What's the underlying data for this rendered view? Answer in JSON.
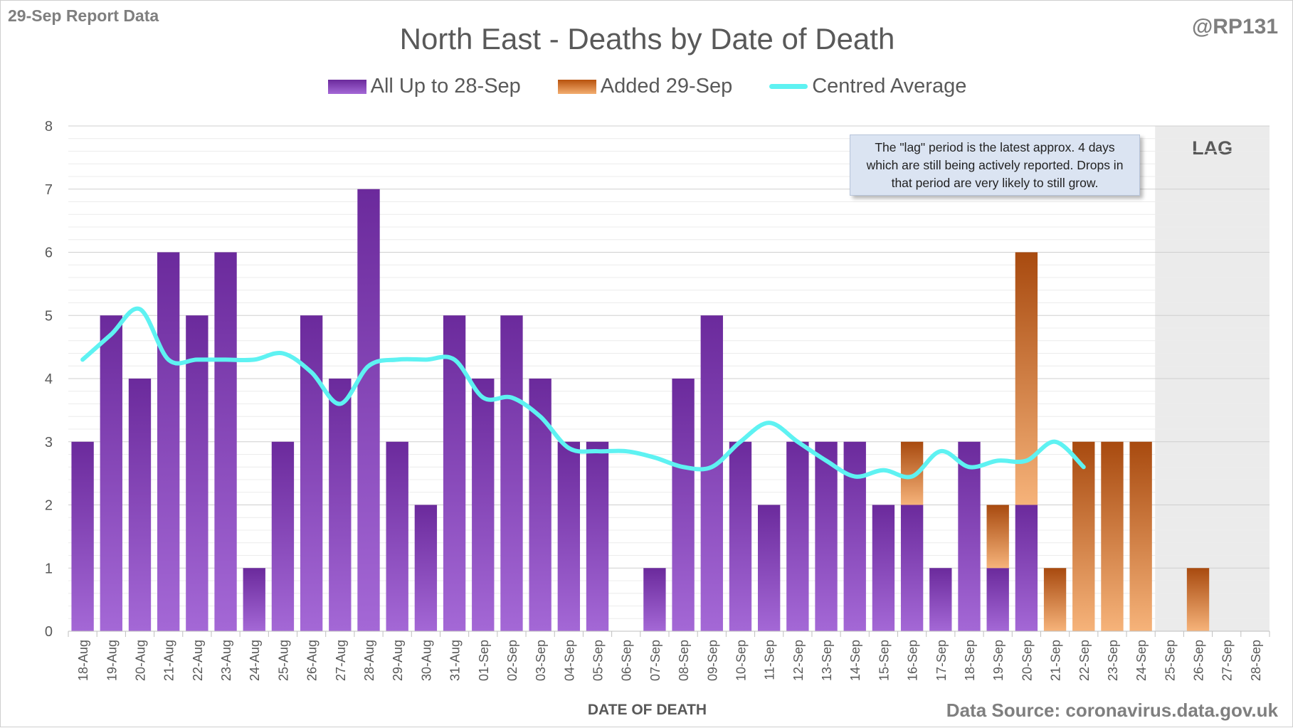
{
  "header": {
    "report_label": "29-Sep Report Data",
    "author_handle": "@RP131",
    "source_label": "Data Source: coronavirus.data.gov.uk"
  },
  "annotation": {
    "lag_note": "The \"lag\" period is the latest approx. 4 days which are still being actively reported.  Drops in that period are very likely to still grow.",
    "lag_label": "LAG",
    "lag_start": "25-Sep",
    "lag_end": "28-Sep"
  },
  "colors": {
    "purple_top": "#6b2a9c",
    "purple_bottom": "#a468d6",
    "orange_top": "#a84a0f",
    "orange_bottom": "#f6b37a",
    "average_line": "#5ef2f2",
    "lag_shade": "#ebebeb",
    "grid": "#d9d9d9"
  },
  "chart_data": {
    "type": "bar",
    "stacked": true,
    "title": "North East - Deaths by Date of Death",
    "xlabel": "DATE OF DEATH",
    "ylabel": "",
    "ylim": [
      0,
      8
    ],
    "yticks": [
      0,
      1,
      2,
      3,
      4,
      5,
      6,
      7,
      8
    ],
    "legend_position": "top-center",
    "categories": [
      "18-Aug",
      "19-Aug",
      "20-Aug",
      "21-Aug",
      "22-Aug",
      "23-Aug",
      "24-Aug",
      "25-Aug",
      "26-Aug",
      "27-Aug",
      "28-Aug",
      "29-Aug",
      "30-Aug",
      "31-Aug",
      "01-Sep",
      "02-Sep",
      "03-Sep",
      "04-Sep",
      "05-Sep",
      "06-Sep",
      "07-Sep",
      "08-Sep",
      "09-Sep",
      "10-Sep",
      "11-Sep",
      "12-Sep",
      "13-Sep",
      "14-Sep",
      "15-Sep",
      "16-Sep",
      "17-Sep",
      "18-Sep",
      "19-Sep",
      "20-Sep",
      "21-Sep",
      "22-Sep",
      "23-Sep",
      "24-Sep",
      "25-Sep",
      "26-Sep",
      "27-Sep",
      "28-Sep"
    ],
    "series": [
      {
        "name": "All Up to 28-Sep",
        "kind": "bar",
        "values": [
          3,
          5,
          4,
          6,
          5,
          6,
          1,
          3,
          5,
          4,
          7,
          3,
          2,
          5,
          4,
          5,
          4,
          3,
          3,
          0,
          1,
          4,
          5,
          3,
          2,
          3,
          3,
          3,
          2,
          2,
          1,
          3,
          1,
          2,
          0,
          0,
          0,
          0,
          0,
          0,
          0,
          0
        ]
      },
      {
        "name": "Added 29-Sep",
        "kind": "bar",
        "values": [
          0,
          0,
          0,
          0,
          0,
          0,
          0,
          0,
          0,
          0,
          0,
          0,
          0,
          0,
          0,
          0,
          0,
          0,
          0,
          0,
          0,
          0,
          0,
          0,
          0,
          0,
          0,
          0,
          0,
          1,
          0,
          0,
          1,
          4,
          1,
          3,
          3,
          3,
          0,
          1,
          0,
          0
        ]
      },
      {
        "name": "Centred Average",
        "kind": "line",
        "values": [
          4.3,
          4.7,
          5.1,
          4.3,
          4.3,
          4.3,
          4.3,
          4.4,
          4.1,
          3.6,
          4.2,
          4.3,
          4.3,
          4.3,
          3.7,
          3.7,
          3.4,
          2.9,
          2.85,
          2.85,
          2.75,
          2.6,
          2.6,
          3.0,
          3.3,
          3.0,
          2.7,
          2.45,
          2.55,
          2.45,
          2.85,
          2.6,
          2.7,
          2.7,
          3.0,
          2.6,
          null,
          null,
          null,
          null,
          null,
          null
        ]
      }
    ]
  }
}
